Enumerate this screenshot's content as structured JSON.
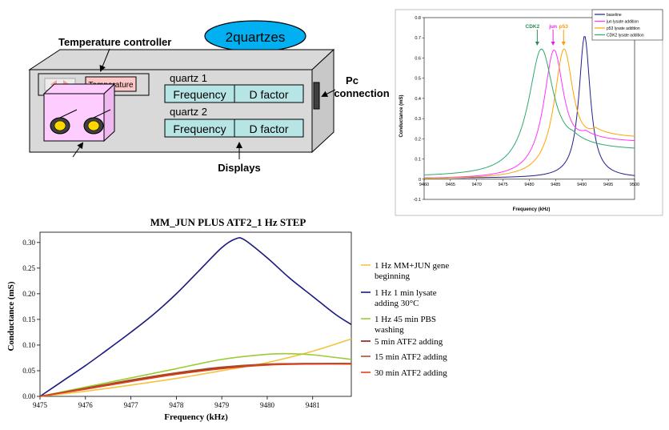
{
  "diagram": {
    "oval_label": "2quartzes",
    "temperature_controller_label": "Temperature controller",
    "temperature_button": "Temperature",
    "quartz1_label": "quartz 1",
    "quartz2_label": "quartz 2",
    "frequency_label": "Frequency",
    "dfactor_label": "D factor",
    "pc_label_line1": "Pc",
    "pc_label_line2": "connection",
    "displays_label": "Displays",
    "colors": {
      "oval_fill": "#00B0F0",
      "box_fill": "#D9D9D9",
      "display_fill": "#B7E4E4",
      "cell_fill": "#FFCCFF",
      "temp_button_fill": "#FFC7C7",
      "quartz_fill": "#FFD700"
    }
  },
  "chart_data": [
    {
      "type": "line",
      "title": "",
      "xlabel": "Frequency (kHz)",
      "ylabel": "Conductance (mS)",
      "xlim": [
        9460,
        9500
      ],
      "ylim": [
        -0.1,
        0.8
      ],
      "x_ticks": [
        "9460",
        "9465",
        "9470",
        "9475",
        "9480",
        "9485",
        "9490",
        "9495",
        "9500"
      ],
      "y_ticks": [
        "-0.1",
        "0",
        "0.1",
        "0.2",
        "0.3",
        "0.4",
        "0.5",
        "0.6",
        "0.7",
        "0.8"
      ],
      "grid": false,
      "legend_position": "top-right",
      "annotations": [
        {
          "text": "CDK2",
          "x": 9481.5,
          "color": "#2E8B57"
        },
        {
          "text": "jun",
          "x": 9484.5,
          "color": "#E020E0"
        },
        {
          "text": "p53",
          "x": 9486.5,
          "color": "#FF9900"
        }
      ],
      "series": [
        {
          "name": "baseline",
          "color": "#1F1F8F",
          "peak_x": 9490.5,
          "peak_y": 0.71,
          "width": 1.3,
          "base": 0.005,
          "tail": 0.0
        },
        {
          "name": "jun lysate addition",
          "color": "#FF33FF",
          "peak_x": 9484.7,
          "peak_y": 0.64,
          "width": 2.4,
          "base": 0.0,
          "tail": 0.18
        },
        {
          "name": "p53 lysate addition",
          "color": "#FFA500",
          "peak_x": 9486.6,
          "peak_y": 0.645,
          "width": 2.3,
          "base": 0.0,
          "tail": 0.2
        },
        {
          "name": "CDK2 lysate addition",
          "color": "#2EAA6E",
          "peak_x": 9482.3,
          "peak_y": 0.645,
          "width": 3.0,
          "base": 0.01,
          "tail": 0.13
        }
      ]
    },
    {
      "type": "line",
      "title": "MM_JUN PLUS ATF2_1 Hz STEP",
      "xlabel": "Frequency (kHz)",
      "ylabel": "Conductance (mS)",
      "xlim": [
        9475,
        9481.85
      ],
      "ylim": [
        0,
        0.32
      ],
      "x_ticks": [
        "9475",
        "9476",
        "9477",
        "9478",
        "9479",
        "9480",
        "9481"
      ],
      "y_ticks": [
        "0.00",
        "0.05",
        "0.10",
        "0.15",
        "0.20",
        "0.25",
        "0.30"
      ],
      "grid": false,
      "legend_position": "right",
      "series": [
        {
          "name": "1 Hz MM+JUN gene beginning",
          "color": "#F5C242",
          "points": [
            [
              9475,
              0.0
            ],
            [
              9476,
              0.01
            ],
            [
              9477,
              0.022
            ],
            [
              9478,
              0.035
            ],
            [
              9479,
              0.05
            ],
            [
              9480,
              0.066
            ],
            [
              9481,
              0.088
            ],
            [
              9481.85,
              0.112
            ]
          ]
        },
        {
          "name": "1 Hz 1 min lysate adding 30°C",
          "color": "#1A1A80",
          "points": [
            [
              9475,
              0.0
            ],
            [
              9475.5,
              0.03
            ],
            [
              9476,
              0.06
            ],
            [
              9476.5,
              0.092
            ],
            [
              9477,
              0.125
            ],
            [
              9477.5,
              0.16
            ],
            [
              9478,
              0.2
            ],
            [
              9478.5,
              0.245
            ],
            [
              9479,
              0.29
            ],
            [
              9479.3,
              0.307
            ],
            [
              9479.5,
              0.305
            ],
            [
              9480,
              0.27
            ],
            [
              9480.5,
              0.23
            ],
            [
              9481,
              0.195
            ],
            [
              9481.5,
              0.16
            ],
            [
              9481.85,
              0.14
            ]
          ]
        },
        {
          "name": "1 Hz 45 min PBS washing",
          "color": "#9ACD32",
          "points": [
            [
              9475,
              0.0
            ],
            [
              9476,
              0.018
            ],
            [
              9477,
              0.036
            ],
            [
              9478,
              0.054
            ],
            [
              9479,
              0.072
            ],
            [
              9480,
              0.082
            ],
            [
              9480.5,
              0.083
            ],
            [
              9481,
              0.081
            ],
            [
              9481.85,
              0.072
            ]
          ]
        },
        {
          "name": "5 min ATF2 adding",
          "color": "#8B1A1A",
          "points": [
            [
              9475,
              0.0
            ],
            [
              9476,
              0.015
            ],
            [
              9477,
              0.03
            ],
            [
              9478,
              0.044
            ],
            [
              9479,
              0.055
            ],
            [
              9480,
              0.062
            ],
            [
              9481,
              0.064
            ],
            [
              9481.85,
              0.064
            ]
          ]
        },
        {
          "name": "15 min ATF2 adding",
          "color": "#A0522D",
          "points": [
            [
              9475,
              0.0
            ],
            [
              9476,
              0.016
            ],
            [
              9477,
              0.032
            ],
            [
              9478,
              0.046
            ],
            [
              9479,
              0.057
            ],
            [
              9480,
              0.063
            ],
            [
              9481,
              0.064
            ],
            [
              9481.85,
              0.063
            ]
          ]
        },
        {
          "name": "30 min ATF2 adding",
          "color": "#E0401A",
          "points": [
            [
              9475,
              0.0
            ],
            [
              9476,
              0.014
            ],
            [
              9477,
              0.029
            ],
            [
              9478,
              0.043
            ],
            [
              9479,
              0.054
            ],
            [
              9480,
              0.061
            ],
            [
              9481,
              0.063
            ],
            [
              9481.85,
              0.063
            ]
          ]
        }
      ]
    }
  ]
}
